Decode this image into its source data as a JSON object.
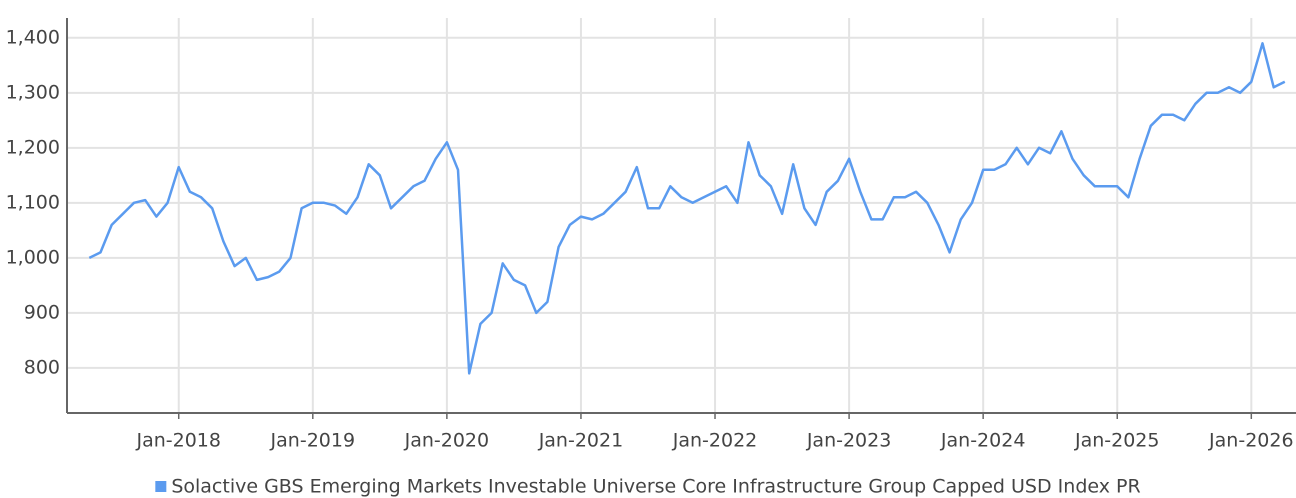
{
  "chart_data": {
    "type": "line",
    "x": [
      "2017-05",
      "2017-06",
      "2017-07",
      "2017-08",
      "2017-09",
      "2017-10",
      "2017-11",
      "2017-12",
      "2018-01",
      "2018-02",
      "2018-03",
      "2018-04",
      "2018-05",
      "2018-06",
      "2018-07",
      "2018-08",
      "2018-09",
      "2018-10",
      "2018-11",
      "2018-12",
      "2019-01",
      "2019-02",
      "2019-03",
      "2019-04",
      "2019-05",
      "2019-06",
      "2019-07",
      "2019-08",
      "2019-09",
      "2019-10",
      "2019-11",
      "2019-12",
      "2020-01",
      "2020-02",
      "2020-03",
      "2020-04",
      "2020-05",
      "2020-06",
      "2020-07",
      "2020-08",
      "2020-09",
      "2020-10",
      "2020-11",
      "2020-12",
      "2021-01",
      "2021-02",
      "2021-03",
      "2021-04",
      "2021-05",
      "2021-06",
      "2021-07",
      "2021-08",
      "2021-09",
      "2021-10",
      "2021-11",
      "2021-12",
      "2022-01",
      "2022-02",
      "2022-03",
      "2022-04",
      "2022-05",
      "2022-06",
      "2022-07",
      "2022-08",
      "2022-09",
      "2022-10",
      "2022-11",
      "2022-12",
      "2023-01",
      "2023-02",
      "2023-03",
      "2023-04",
      "2023-05",
      "2023-06",
      "2023-07",
      "2023-08",
      "2023-09",
      "2023-10",
      "2023-11",
      "2023-12",
      "2024-01",
      "2024-02",
      "2024-03",
      "2024-04",
      "2024-05",
      "2024-06",
      "2024-07",
      "2024-08",
      "2024-09",
      "2024-10",
      "2024-11",
      "2024-12",
      "2025-01",
      "2025-02",
      "2025-03",
      "2025-04",
      "2025-05",
      "2025-06",
      "2025-07",
      "2025-08",
      "2025-09",
      "2025-10",
      "2025-11",
      "2025-12",
      "2026-01",
      "2026-02",
      "2026-03",
      "2026-04"
    ],
    "series": [
      {
        "name": "Solactive GBS Emerging Markets Investable Universe Core Infrastructure Group Capped USD Index PR",
        "color": "#5b9bef",
        "values": [
          1000,
          1010,
          1060,
          1080,
          1100,
          1105,
          1075,
          1100,
          1165,
          1120,
          1110,
          1090,
          1030,
          985,
          1000,
          960,
          965,
          975,
          1000,
          1090,
          1100,
          1100,
          1095,
          1080,
          1110,
          1170,
          1150,
          1090,
          1110,
          1130,
          1140,
          1180,
          1210,
          1160,
          790,
          880,
          900,
          990,
          960,
          950,
          900,
          920,
          1020,
          1060,
          1075,
          1070,
          1080,
          1100,
          1120,
          1165,
          1090,
          1090,
          1130,
          1110,
          1100,
          1110,
          1120,
          1130,
          1100,
          1210,
          1150,
          1130,
          1080,
          1170,
          1090,
          1060,
          1120,
          1140,
          1180,
          1120,
          1070,
          1070,
          1110,
          1110,
          1120,
          1100,
          1060,
          1010,
          1070,
          1100,
          1160,
          1160,
          1170,
          1200,
          1170,
          1200,
          1190,
          1230,
          1180,
          1150,
          1130,
          1130,
          1130,
          1110,
          1180,
          1240,
          1260,
          1260,
          1250,
          1280,
          1300,
          1300,
          1310,
          1300,
          1320,
          1390,
          1310,
          1320
        ]
      }
    ],
    "xlim": [
      "2017-03",
      "2026-05"
    ],
    "xticks": [
      {
        "value": "2018-01",
        "label": "Jan-2018"
      },
      {
        "value": "2019-01",
        "label": "Jan-2019"
      },
      {
        "value": "2020-01",
        "label": "Jan-2020"
      },
      {
        "value": "2021-01",
        "label": "Jan-2021"
      },
      {
        "value": "2022-01",
        "label": "Jan-2022"
      },
      {
        "value": "2023-01",
        "label": "Jan-2023"
      },
      {
        "value": "2024-01",
        "label": "Jan-2024"
      },
      {
        "value": "2025-01",
        "label": "Jan-2025"
      },
      {
        "value": "2026-01",
        "label": "Jan-2026"
      }
    ],
    "ylim": [
      718,
      1436
    ],
    "yticks": [
      800,
      900,
      {
        "value": 1000,
        "label": "1,000"
      },
      {
        "value": 1100,
        "label": "1,100"
      },
      {
        "value": 1200,
        "label": "1,200"
      },
      {
        "value": 1300,
        "label": "1,300"
      },
      {
        "value": 1400,
        "label": "1,400"
      }
    ],
    "grid": true,
    "legend": "bottom"
  }
}
